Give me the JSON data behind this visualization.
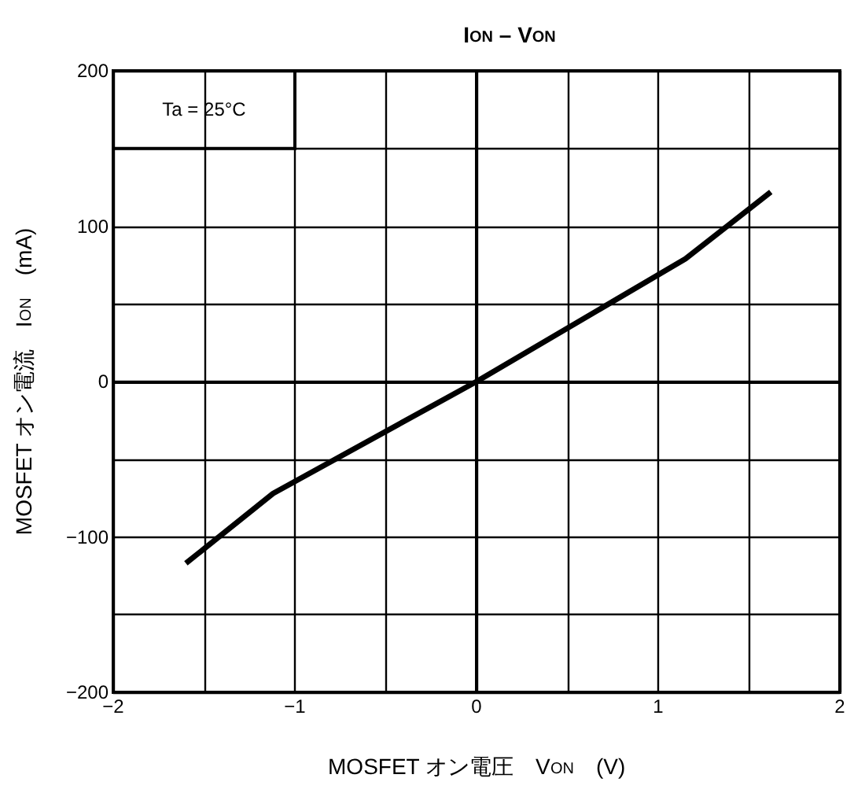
{
  "chart_data": {
    "type": "line",
    "title": "I$_{ON}$ – V$_{ON}$",
    "xlabel": "MOSFET オン電圧　V$_{ON}$　(V)",
    "ylabel": "MOSFET オン電流　I$_{ON}$　(mA)",
    "annotations": [
      "Ta = 25°C"
    ],
    "series": [
      {
        "color": "#000000",
        "x": [
          -1.6,
          -1.12,
          0,
          1.15,
          1.62
        ],
        "values": [
          -117,
          -72,
          0,
          79,
          122
        ]
      }
    ],
    "xlim": [
      -2,
      2
    ],
    "xticks": [
      -2,
      {
        "value": -1.5,
        "label": null
      },
      -1,
      {
        "value": -0.5,
        "label": null
      },
      0,
      {
        "value": 0.5,
        "label": null
      },
      1,
      {
        "value": 1.5,
        "label": null
      },
      2
    ],
    "ylim": [
      -200,
      200
    ],
    "yticks": [
      -200,
      {
        "value": -150,
        "label": null
      },
      -100,
      {
        "value": -50,
        "label": null
      },
      0,
      {
        "value": 50,
        "label": null
      },
      100,
      {
        "value": 150,
        "label": null
      },
      200
    ],
    "grid": true,
    "marker": "none",
    "line_style": "solid"
  }
}
